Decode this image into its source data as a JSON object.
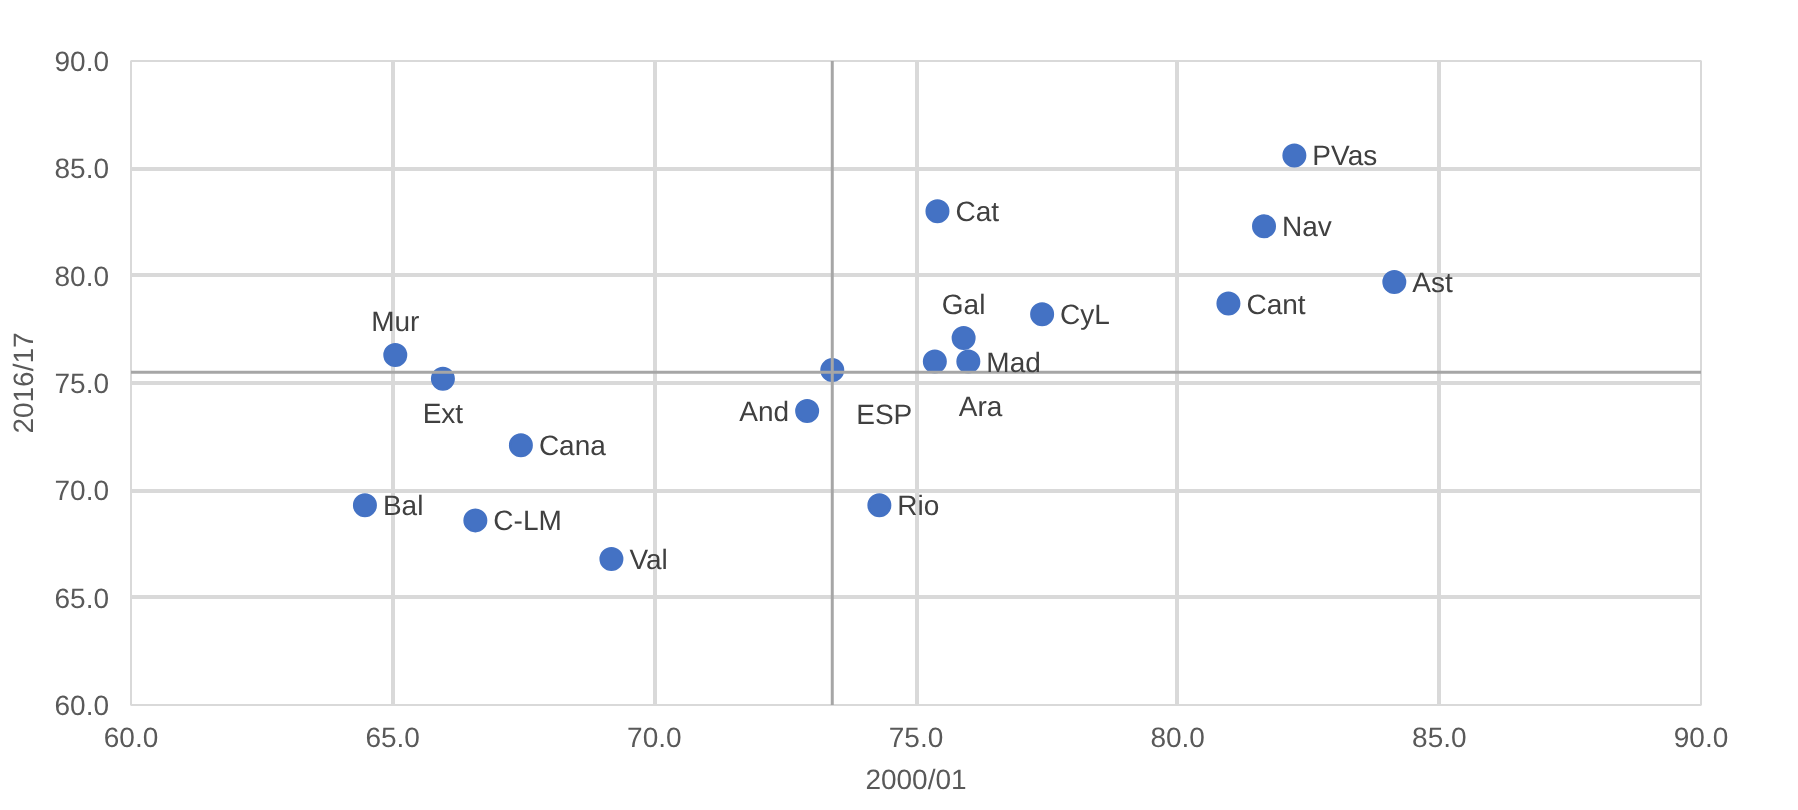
{
  "chart_data": {
    "type": "scatter",
    "xlabel": "2000/01",
    "ylabel": "2016/17",
    "x": [
      65.05,
      65.96,
      67.45,
      64.47,
      66.58,
      69.18,
      73.4,
      72.92,
      74.3,
      75.41,
      82.23,
      81.65,
      84.14,
      80.97,
      77.41,
      75.91,
      75.36,
      76.0
    ],
    "series": [
      {
        "color": "#4472c4",
        "values": [
          76.3,
          75.2,
          72.1,
          69.3,
          68.6,
          66.8,
          75.6,
          73.7,
          69.3,
          83.0,
          85.6,
          82.3,
          79.7,
          78.7,
          78.2,
          77.1,
          76.0,
          76.0
        ]
      }
    ],
    "annotations": [
      {
        "text": "Mur",
        "x": 65.05,
        "y": 76.3
      },
      {
        "text": "Ext",
        "x": 65.96,
        "y": 75.2
      },
      {
        "text": "Cana",
        "x": 67.45,
        "y": 72.1
      },
      {
        "text": "Bal",
        "x": 64.47,
        "y": 69.3
      },
      {
        "text": "C-LM",
        "x": 66.58,
        "y": 68.6
      },
      {
        "text": "Val",
        "x": 69.18,
        "y": 66.8
      },
      {
        "text": "ESP",
        "x": 73.4,
        "y": 75.6
      },
      {
        "text": "And",
        "x": 72.92,
        "y": 73.7
      },
      {
        "text": "Rio",
        "x": 74.3,
        "y": 69.3
      },
      {
        "text": "Cat",
        "x": 75.41,
        "y": 83.0
      },
      {
        "text": "PVas",
        "x": 82.23,
        "y": 85.6
      },
      {
        "text": "Nav",
        "x": 81.65,
        "y": 82.3
      },
      {
        "text": "Ast",
        "x": 84.14,
        "y": 79.7
      },
      {
        "text": "Cant",
        "x": 80.97,
        "y": 78.7
      },
      {
        "text": "CyL",
        "x": 77.41,
        "y": 78.2
      },
      {
        "text": "Gal",
        "x": 75.91,
        "y": 77.1
      },
      {
        "text": "Ara",
        "x": 75.36,
        "y": 76.0
      },
      {
        "text": "Mad",
        "x": 76.0,
        "y": 76.0
      }
    ],
    "xlim": [
      60,
      90
    ],
    "xticks": [
      {
        "value": 60,
        "label": "60.0"
      },
      {
        "value": 65,
        "label": "65.0"
      },
      {
        "value": 70,
        "label": "70.0"
      },
      {
        "value": 75,
        "label": "75.0"
      },
      {
        "value": 80,
        "label": "80.0"
      },
      {
        "value": 85,
        "label": "85.0"
      },
      {
        "value": 90,
        "label": "90.0"
      }
    ],
    "ylim": [
      60,
      90
    ],
    "yticks": [
      {
        "value": 60,
        "label": "60.0"
      },
      {
        "value": 65,
        "label": "65.0"
      },
      {
        "value": 70,
        "label": "70.0"
      },
      {
        "value": 75,
        "label": "75.0"
      },
      {
        "value": 80,
        "label": "80.0"
      },
      {
        "value": 85,
        "label": "85.0"
      },
      {
        "value": 90,
        "label": "90.0"
      }
    ],
    "ref_lines": [
      {
        "axis": "x",
        "value": 73.4,
        "color": "#a6a6a6"
      },
      {
        "axis": "y",
        "value": 75.5,
        "color": "#a6a6a6"
      }
    ],
    "grid": true,
    "marker": "circle"
  }
}
